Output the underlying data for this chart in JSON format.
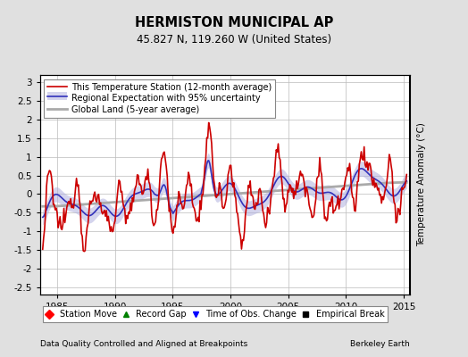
{
  "title": "HERMISTON MUNICIPAL AP",
  "subtitle": "45.827 N, 119.260 W (United States)",
  "ylabel": "Temperature Anomaly (°C)",
  "xlabel_left": "Data Quality Controlled and Aligned at Breakpoints",
  "xlabel_right": "Berkeley Earth",
  "ylim": [
    -2.7,
    3.2
  ],
  "xlim": [
    1983.5,
    2015.5
  ],
  "yticks": [
    -2.5,
    -2,
    -1.5,
    -1,
    -0.5,
    0,
    0.5,
    1,
    1.5,
    2,
    2.5,
    3
  ],
  "xticks": [
    1985,
    1990,
    1995,
    2000,
    2005,
    2010,
    2015
  ],
  "legend_items": [
    {
      "label": "This Temperature Station (12-month average)",
      "color": "#cc0000",
      "lw": 1.2
    },
    {
      "label": "Regional Expectation with 95% uncertainty",
      "color": "#3333bb",
      "lw": 1.2
    },
    {
      "label": "Global Land (5-year average)",
      "color": "#aaaaaa",
      "lw": 2.0
    }
  ],
  "band_color": "#aaaadd",
  "band_alpha": 0.5,
  "marker_items": [
    {
      "label": "Station Move",
      "marker": "D",
      "color": "red"
    },
    {
      "label": "Record Gap",
      "marker": "^",
      "color": "green"
    },
    {
      "label": "Time of Obs. Change",
      "marker": "v",
      "color": "blue"
    },
    {
      "label": "Empirical Break",
      "marker": "s",
      "color": "black"
    }
  ],
  "bg_color": "#e0e0e0",
  "plot_bg_color": "#ffffff",
  "grid_color": "#bbbbbb"
}
